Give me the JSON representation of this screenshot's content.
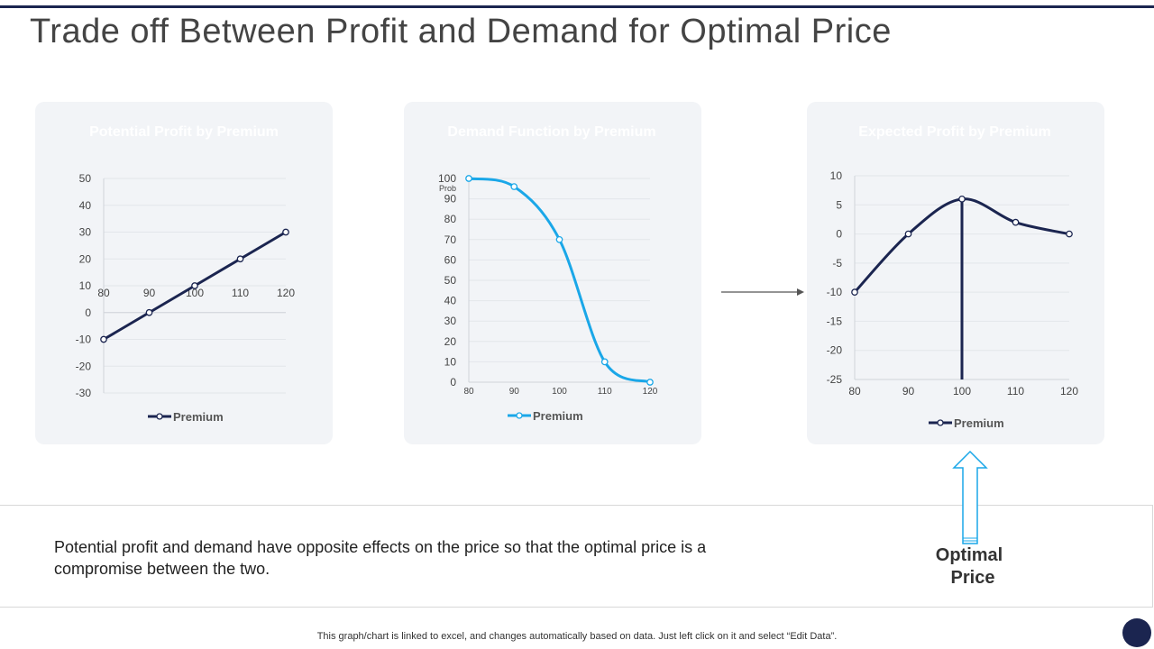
{
  "page": {
    "title": "Trade off Between Profit and Demand for Optimal Price",
    "note": "Potential profit and demand have opposite effects on the price so that the optimal price is a compromise between the two.",
    "optimal_label_line1": "Optimal",
    "optimal_label_line2": "Price",
    "footer": "This graph/chart is linked to excel,  and changes automatically based on data. Just left click on it and select “Edit Data”.",
    "colors": {
      "navy": "#1b2550",
      "cyan": "#1aa7e8",
      "card_bg": "#f2f4f7"
    }
  },
  "chart_data": [
    {
      "id": "potential-profit",
      "type": "line",
      "title": "Potential Profit by Premium",
      "header_color": "#1b2550",
      "line_color": "#1b2550",
      "series": [
        {
          "name": "Premium",
          "values": [
            -10,
            0,
            10,
            20,
            30
          ]
        }
      ],
      "x": [
        80,
        90,
        100,
        110,
        120
      ],
      "x_ticks": [
        "80",
        "90",
        "100",
        "110",
        "120"
      ],
      "y_ticks": [
        "50",
        "40",
        "30",
        "20",
        "10",
        "0",
        "-10",
        "-20",
        "-30"
      ],
      "y_tick_values": [
        50,
        40,
        30,
        20,
        10,
        0,
        -10,
        -20,
        -30
      ],
      "ylim": [
        -30,
        50
      ],
      "xlim": [
        80,
        120
      ],
      "x_axis_at": 0,
      "legend": "Premium",
      "smooth": false
    },
    {
      "id": "demand-function",
      "type": "line",
      "title": "Demand Function by Premium",
      "header_color": "#1aa7e8",
      "line_color": "#1aa7e8",
      "series": [
        {
          "name": "Premium",
          "values": [
            100,
            96,
            70,
            10,
            0
          ]
        }
      ],
      "x": [
        80,
        90,
        100,
        110,
        120
      ],
      "x_ticks": [
        "80",
        "90",
        "100",
        "110",
        "120"
      ],
      "y_ticks": [
        "100",
        "90",
        "80",
        "70",
        "60",
        "50",
        "40",
        "30",
        "20",
        "10",
        "0"
      ],
      "y_tick_values": [
        100,
        90,
        80,
        70,
        60,
        50,
        40,
        30,
        20,
        10,
        0
      ],
      "ylabel": "Prob",
      "ylim": [
        0,
        100
      ],
      "xlim": [
        80,
        120
      ],
      "x_axis_at": 0,
      "legend": "Premium",
      "smooth": true
    },
    {
      "id": "expected-profit",
      "type": "line",
      "title": "Expected Profit by Premium",
      "header_color": "#1b2550",
      "line_color": "#1b2550",
      "series": [
        {
          "name": "Premium",
          "values": [
            -10,
            0,
            6,
            2,
            0
          ]
        }
      ],
      "x": [
        80,
        90,
        100,
        110,
        120
      ],
      "x_ticks": [
        "80",
        "90",
        "100",
        "110",
        "120"
      ],
      "y_ticks": [
        "10",
        "5",
        "0",
        "-5",
        "-10",
        "-15",
        "-20",
        "-25"
      ],
      "y_tick_values": [
        10,
        5,
        0,
        -5,
        -10,
        -15,
        -20,
        -25
      ],
      "ylim": [
        -25,
        10
      ],
      "xlim": [
        80,
        120
      ],
      "x_axis_at": -25,
      "legend": "Premium",
      "smooth": true,
      "optimal_x": 100
    }
  ]
}
